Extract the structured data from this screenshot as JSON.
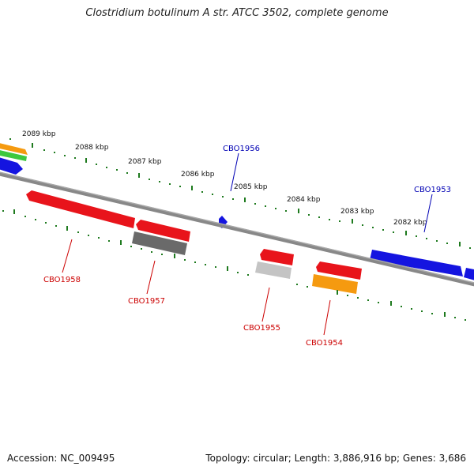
{
  "title": "Clostridium botulinum A str. ATCC 3502, complete genome",
  "footer": {
    "accession": "Accession: NC_009495",
    "stats": "Topology: circular; Length: 3,886,916 bp; Genes: 3,686"
  },
  "colors": {
    "red": "#e8141b",
    "blue": "#1414e0",
    "orange": "#f59a10",
    "green": "#3ec83e",
    "dark_gray": "#6a6a6a",
    "light_gray": "#c4c4c4",
    "backbone": "#888888",
    "ticks": "#1e7a1e",
    "label_red": "#cc0000",
    "label_blue": "#0000b4"
  },
  "kbp_labels": [
    "2089 kbp",
    "2088 kbp",
    "2087 kbp",
    "2086 kbp",
    "2085 kbp",
    "2084 kbp",
    "2083 kbp",
    "2082 kbp"
  ],
  "gene_labels": {
    "CBO1958": "CBO1958",
    "CBO1957": "CBO1957",
    "CBO1956": "CBO1956",
    "CBO1955": "CBO1955",
    "CBO1954": "CBO1954",
    "CBO1953": "CBO1953"
  }
}
